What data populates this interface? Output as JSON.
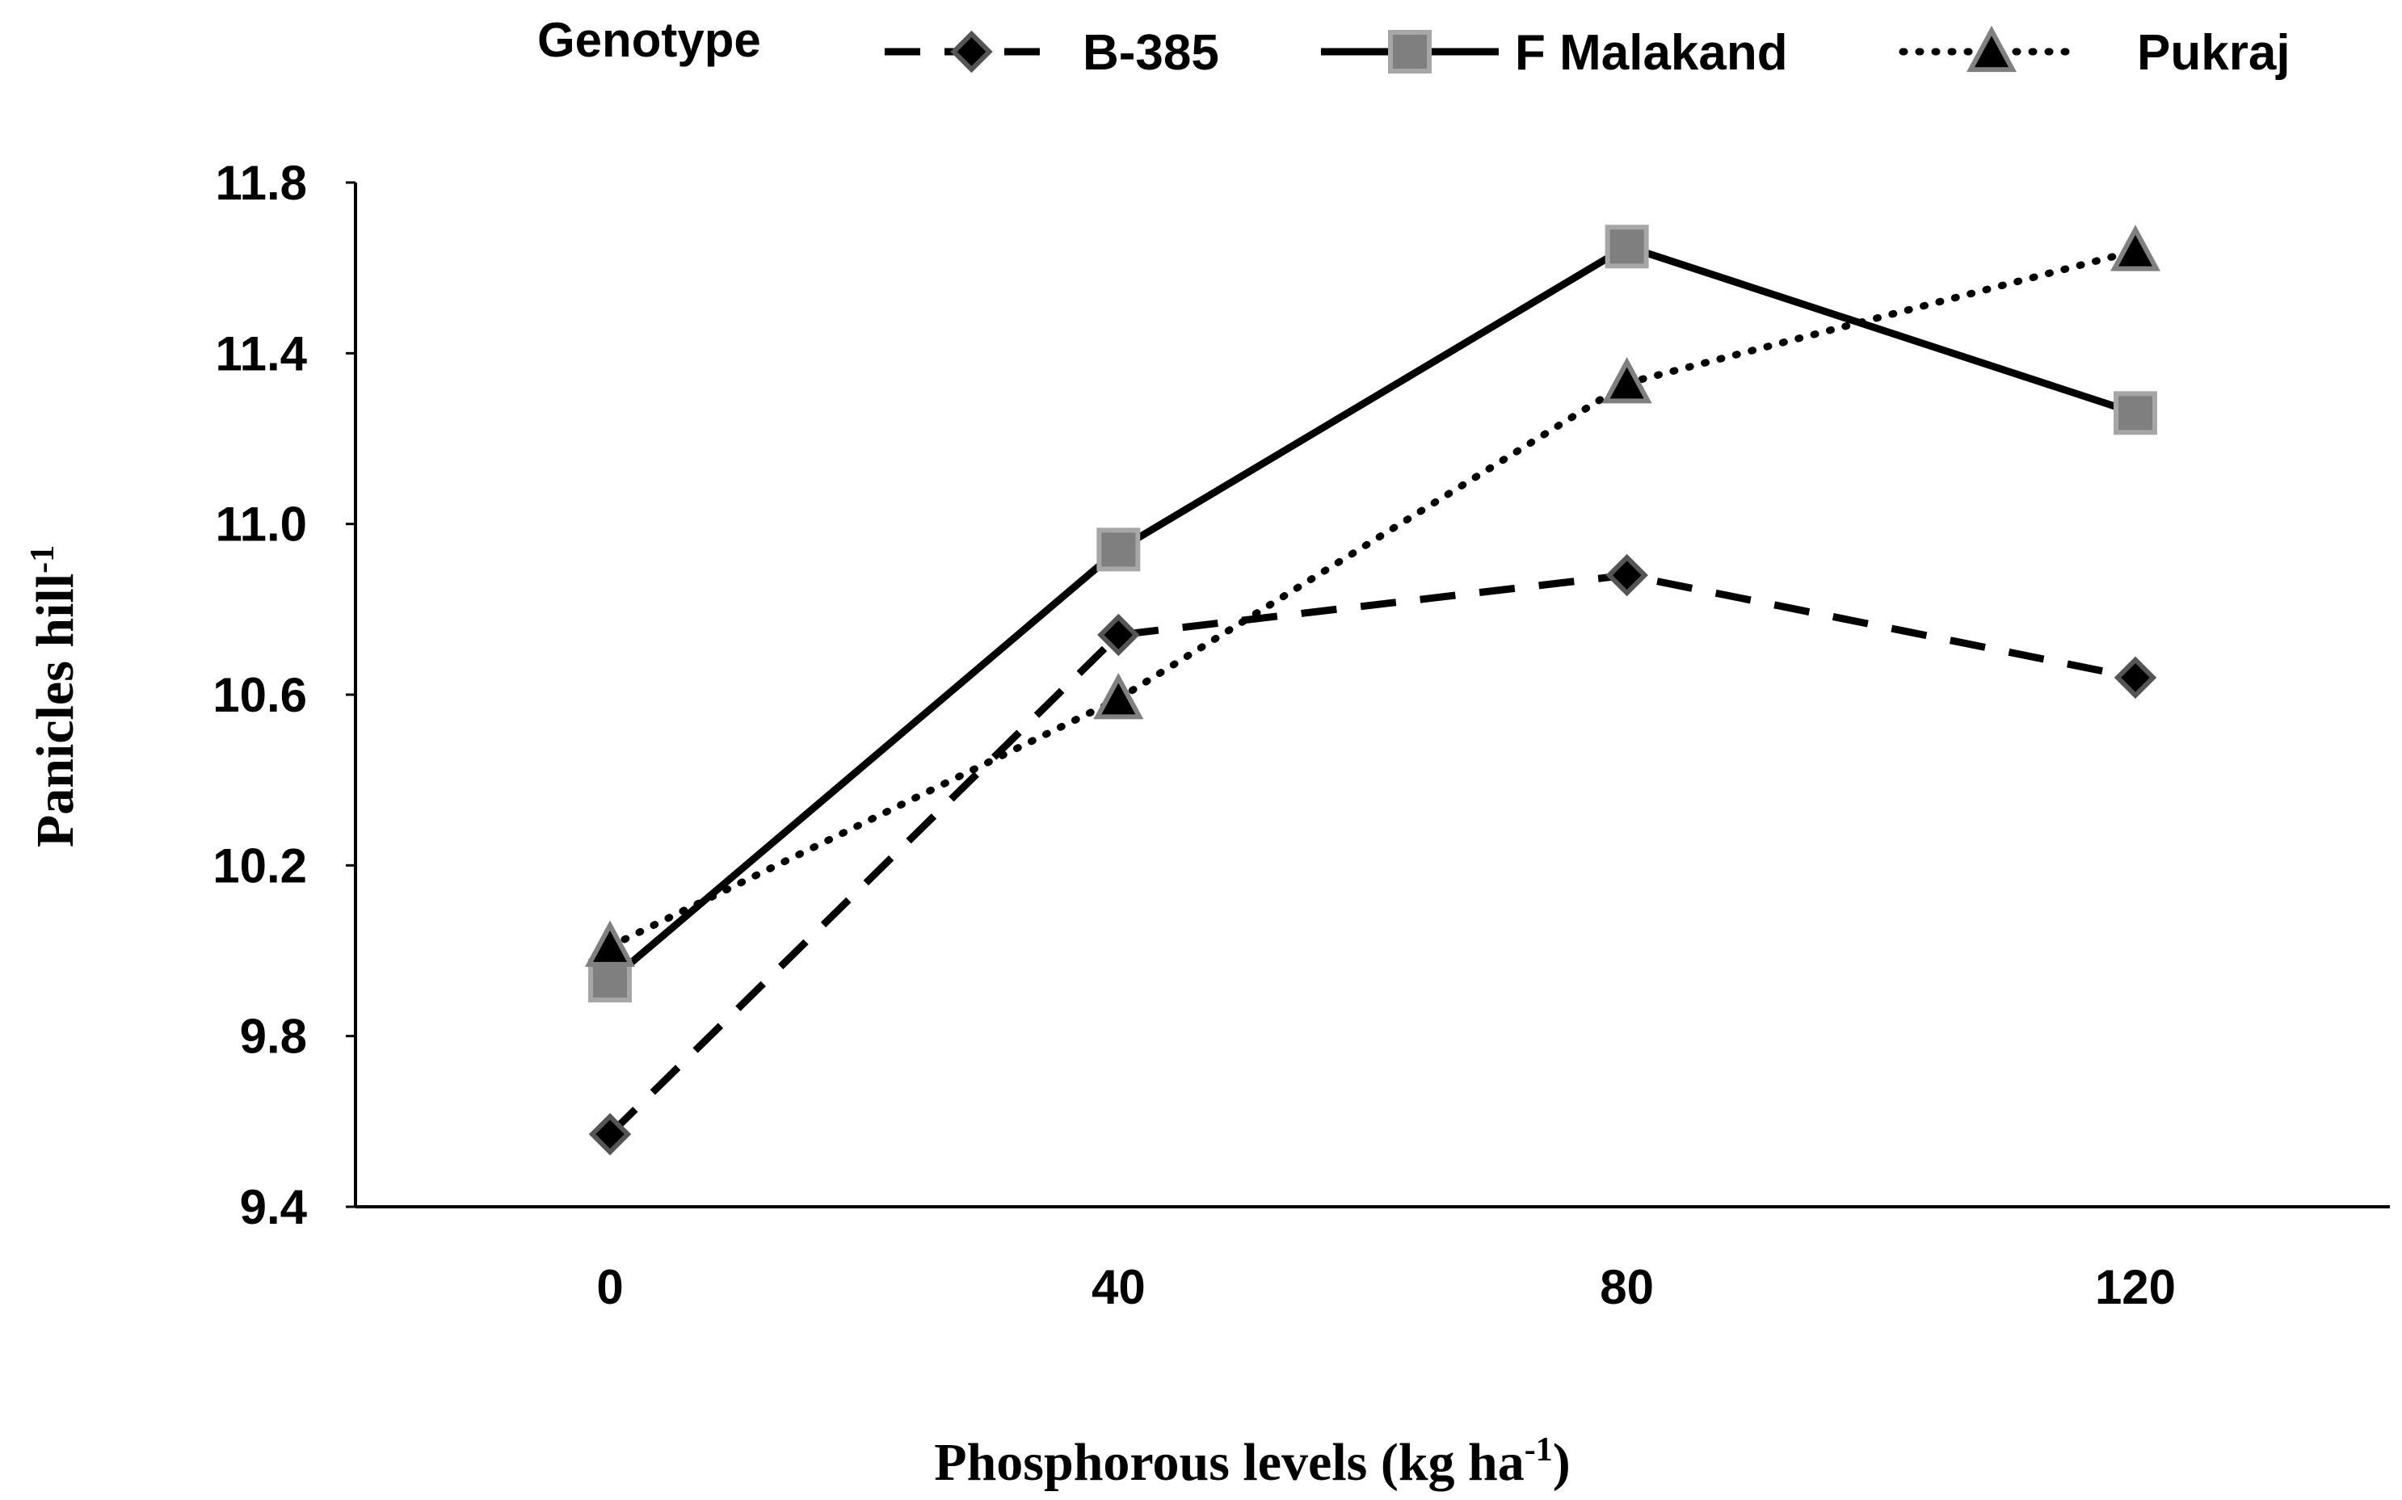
{
  "chart_data": {
    "type": "line",
    "title": "",
    "xlabel": {
      "base": "Phosphorous levels (kg ha",
      "sup": "-1",
      "close": ")"
    },
    "ylabel": {
      "base": "Panicles hill",
      "sup": "-1"
    },
    "x": [
      0,
      40,
      80,
      120
    ],
    "xtick_labels": [
      "0",
      "40",
      "80",
      "120"
    ],
    "xlim": [
      -20,
      140
    ],
    "ylim": [
      9.4,
      11.8
    ],
    "yticks": [
      9.4,
      9.8,
      10.2,
      10.6,
      11.0,
      11.4,
      11.8
    ],
    "ytick_labels": [
      "9.4",
      "9.8",
      "10.2",
      "10.6",
      "11.0",
      "11.4",
      "11.8"
    ],
    "legend": {
      "title": "Genotype",
      "position": "top"
    },
    "series": [
      {
        "name": "B-385",
        "style": "dashed",
        "marker": "diamond",
        "line_color": "#000000",
        "marker_fill": "#000000",
        "marker_stroke": "#555555",
        "values": [
          9.57,
          10.74,
          10.88,
          10.64
        ]
      },
      {
        "name": "F Malakand",
        "style": "solid",
        "marker": "square",
        "line_color": "#000000",
        "marker_fill": "#7f7f7f",
        "marker_stroke": "#a6a6a6",
        "values": [
          9.93,
          10.94,
          11.65,
          11.26
        ]
      },
      {
        "name": "Pukraj",
        "style": "dotted",
        "marker": "triangle",
        "line_color": "#000000",
        "marker_fill": "#000000",
        "marker_stroke": "#808080",
        "values": [
          10.01,
          10.59,
          11.33,
          11.64
        ]
      }
    ]
  }
}
